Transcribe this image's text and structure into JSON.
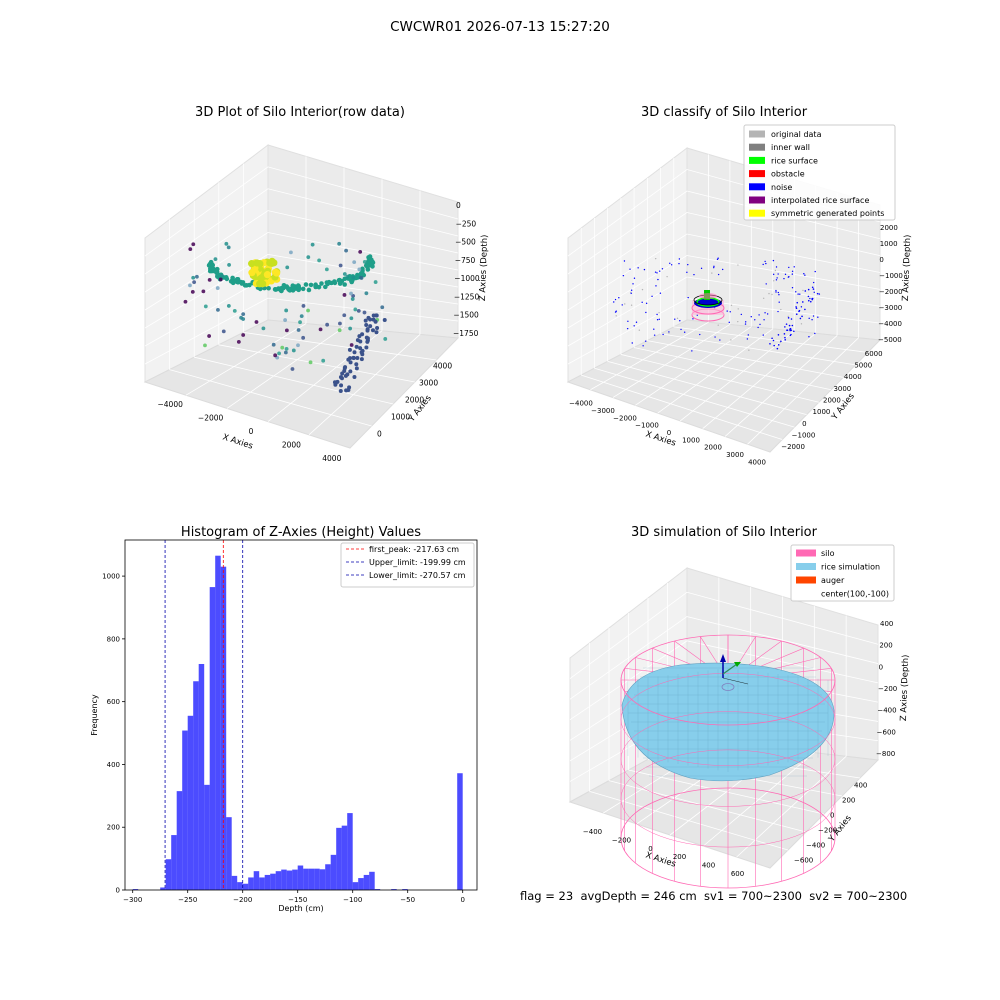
{
  "suptitle": "CWCWR01 2026-07-13 15:27:20",
  "panels": {
    "raw": {
      "title": "3D Plot of Silo Interior(row data)",
      "xlabel": "X Axies",
      "ylabel": "Y Axies",
      "zlabel": "Z Axies (Depth)",
      "x_ticks": [
        "−4000",
        "−2000",
        "0",
        "2000",
        "4000"
      ],
      "y_ticks": [
        "0",
        "1000",
        "2000",
        "3000",
        "4000"
      ],
      "z_ticks": [
        "0",
        "−250",
        "−500",
        "−750",
        "−1000",
        "−1250",
        "−1500",
        "−1750"
      ]
    },
    "classify": {
      "title": "3D classify of Silo Interior",
      "xlabel": "X Axies",
      "ylabel": "Y Axies",
      "zlabel": "Z Axies (Depth)",
      "x_ticks": [
        "−4000",
        "−3000",
        "−2000",
        "−1000",
        "0",
        "1000",
        "2000",
        "3000",
        "4000"
      ],
      "y_ticks": [
        "−2000",
        "−1000",
        "0",
        "1000",
        "2000",
        "3000",
        "4000",
        "5000",
        "6000"
      ],
      "z_ticks": [
        "2000",
        "1000",
        "0",
        "−1000",
        "−2000",
        "−3000",
        "−4000",
        "−5000"
      ],
      "legend": [
        {
          "label": "original data",
          "color": "#b4b4b4"
        },
        {
          "label": "inner wall",
          "color": "#808080"
        },
        {
          "label": "rice surface",
          "color": "#00ff00"
        },
        {
          "label": "obstacle",
          "color": "#ff0000"
        },
        {
          "label": "noise",
          "color": "#0000ff"
        },
        {
          "label": "interpolated rice surface",
          "color": "#800080"
        },
        {
          "label": "symmetric generated points",
          "color": "#ffff00"
        }
      ]
    },
    "simulation": {
      "title": "3D simulation of Silo Interior",
      "xlabel": "X Axies",
      "ylabel": "Y Axies",
      "zlabel": "Z Axies (Depth)",
      "x_ticks": [
        "−400",
        "−200",
        "0",
        "200",
        "400",
        "600"
      ],
      "y_ticks": [
        "−600",
        "−400",
        "−200",
        "0",
        "200",
        "400"
      ],
      "z_ticks": [
        "400",
        "200",
        "0",
        "−200",
        "−400",
        "−600",
        "−800"
      ],
      "legend": [
        {
          "label": "silo",
          "color": "#ff69b4"
        },
        {
          "label": "rice simulation",
          "color": "#87ceeb"
        },
        {
          "label": "auger",
          "color": "#ff4500"
        },
        {
          "label": "center(100,-100)",
          "color": ""
        }
      ]
    }
  },
  "chart_data": {
    "type": "bar",
    "title": "Histogram of Z-Axies (Height) Values",
    "xlabel": "Depth (cm)",
    "ylabel": "Frequency",
    "xlim": [
      -307,
      13
    ],
    "ylim": [
      0,
      1115
    ],
    "x_ticks": [
      -300,
      -250,
      -200,
      -150,
      -100,
      -50,
      0
    ],
    "y_ticks": [
      0,
      200,
      400,
      600,
      800,
      1000
    ],
    "bin_width": 5,
    "bar_color": "#0000ff",
    "bins": [
      [
        -300,
        3
      ],
      [
        -295,
        0
      ],
      [
        -290,
        0
      ],
      [
        -285,
        0
      ],
      [
        -280,
        0
      ],
      [
        -275,
        8
      ],
      [
        -270,
        98
      ],
      [
        -265,
        175
      ],
      [
        -260,
        315
      ],
      [
        -255,
        508
      ],
      [
        -250,
        555
      ],
      [
        -245,
        665
      ],
      [
        -240,
        720
      ],
      [
        -235,
        335
      ],
      [
        -230,
        965
      ],
      [
        -225,
        1065
      ],
      [
        -220,
        1030
      ],
      [
        -215,
        232
      ],
      [
        -210,
        45
      ],
      [
        -205,
        25
      ],
      [
        -200,
        20
      ],
      [
        -195,
        40
      ],
      [
        -190,
        60
      ],
      [
        -185,
        40
      ],
      [
        -180,
        48
      ],
      [
        -175,
        52
      ],
      [
        -170,
        60
      ],
      [
        -165,
        65
      ],
      [
        -160,
        62
      ],
      [
        -155,
        65
      ],
      [
        -150,
        78
      ],
      [
        -145,
        68
      ],
      [
        -140,
        68
      ],
      [
        -135,
        68
      ],
      [
        -130,
        66
      ],
      [
        -125,
        82
      ],
      [
        -120,
        112
      ],
      [
        -115,
        198
      ],
      [
        -110,
        205
      ],
      [
        -105,
        245
      ],
      [
        -100,
        25
      ],
      [
        -95,
        38
      ],
      [
        -90,
        48
      ],
      [
        -85,
        58
      ],
      [
        -80,
        3
      ],
      [
        -75,
        0
      ],
      [
        -70,
        0
      ],
      [
        -65,
        3
      ],
      [
        -60,
        0
      ],
      [
        -55,
        3
      ],
      [
        -50,
        0
      ],
      [
        -45,
        0
      ],
      [
        -40,
        0
      ],
      [
        -35,
        0
      ],
      [
        -30,
        0
      ],
      [
        -25,
        0
      ],
      [
        -20,
        0
      ],
      [
        -15,
        0
      ],
      [
        -10,
        0
      ],
      [
        -5,
        372
      ]
    ],
    "vlines": [
      {
        "label": "first_peak: -217.63 cm",
        "x": -217.63,
        "color": "#ff0000"
      },
      {
        "label": "Upper_limit: -199.99 cm",
        "x": -199.99,
        "color": "#0000aa"
      },
      {
        "label": "Lower_limit: -270.57 cm",
        "x": -270.57,
        "color": "#0000aa"
      }
    ],
    "legend_position": "upper right"
  },
  "footer": {
    "text": "flag = 23  avgDepth = 246 cm  sv1 = 700~2300  sv2 = 700~2300"
  }
}
